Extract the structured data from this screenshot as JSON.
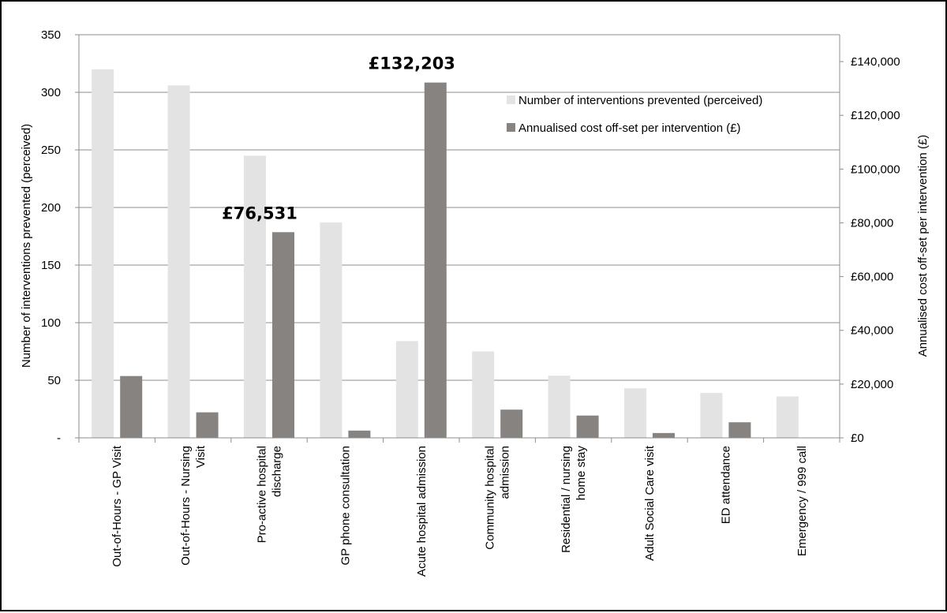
{
  "chart_data": {
    "type": "bar",
    "categories": [
      [
        "Out-of-Hours - GP Visit"
      ],
      [
        "Out-of-Hours - Nursing",
        "Visit"
      ],
      [
        "Pro-active hospital",
        "discharge"
      ],
      [
        "GP phone consultation"
      ],
      [
        "Acute hospital admission"
      ],
      [
        "Community hospital",
        "admission"
      ],
      [
        "Residential / nursing",
        "home stay"
      ],
      [
        "Adult Social Care visit"
      ],
      [
        "ED attendance"
      ],
      [
        "Emergency / 999 call"
      ]
    ],
    "series": [
      {
        "name": "Number of interventions prevented (perceived)",
        "axis": "left",
        "color": "#e3e3e3",
        "values": [
          320,
          306,
          245,
          187,
          84,
          75,
          54,
          43,
          39,
          36
        ]
      },
      {
        "name": "Annualised cost off-set per intervention (£)",
        "axis": "right",
        "color": "#878380",
        "values": [
          23000,
          9500,
          76531,
          2700,
          132203,
          10500,
          8300,
          1800,
          5800,
          0
        ]
      }
    ],
    "ylabel": "Number of interventions prevented (perceived)",
    "y2label": "Annualised cost off-set per intervention (£)",
    "ylim": [
      0,
      350
    ],
    "y2lim": [
      0,
      150000
    ],
    "yticks": [
      "-",
      "50",
      "100",
      "150",
      "200",
      "250",
      "300",
      "350"
    ],
    "y2ticks": [
      "£0",
      "£20,000",
      "£40,000",
      "£60,000",
      "£80,000",
      "£100,000",
      "£120,000",
      "£140,000"
    ],
    "annotations": [
      {
        "text": "£76,531",
        "category_index": 2,
        "series_index": 1
      },
      {
        "text": "£132,203",
        "category_index": 4,
        "series_index": 1
      }
    ],
    "grid": true,
    "legend_position": "top-right"
  }
}
